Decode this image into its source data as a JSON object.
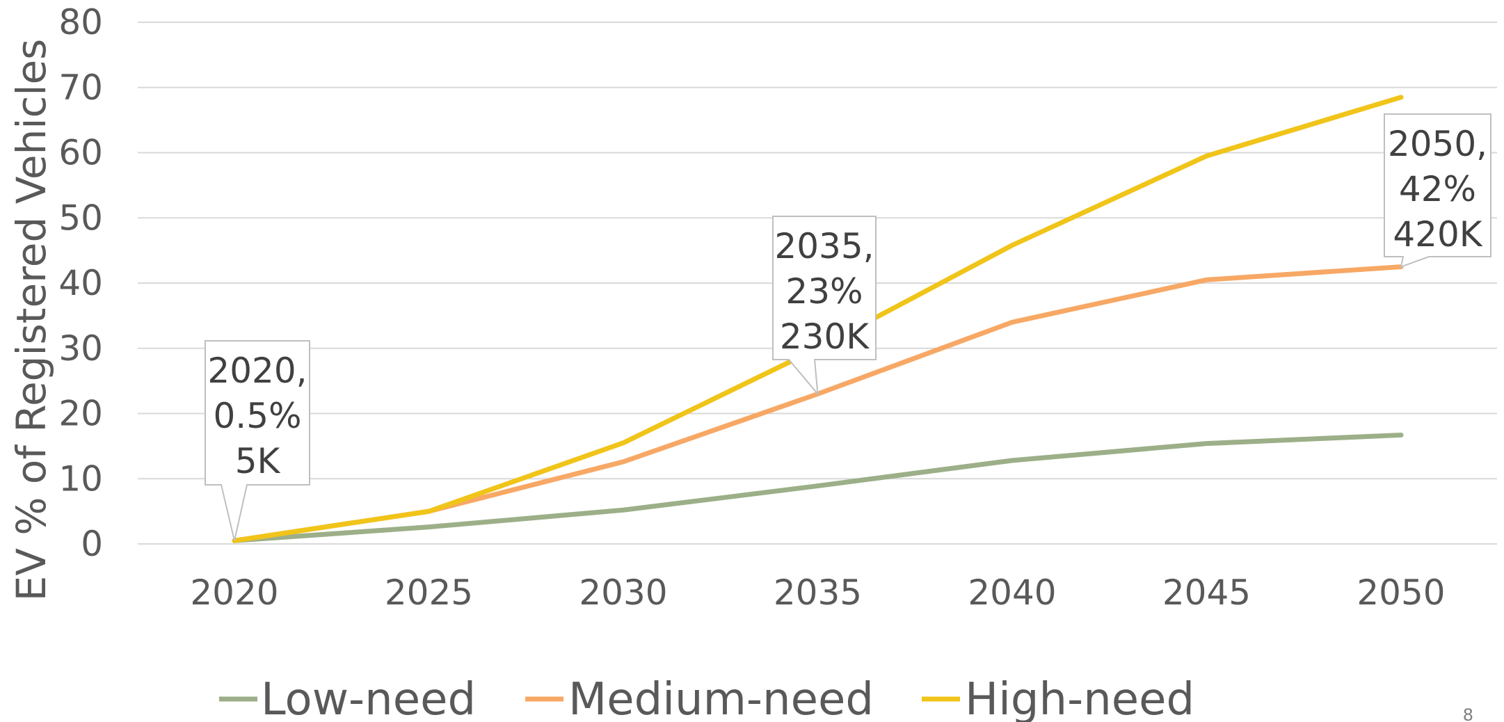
{
  "chart_data": {
    "type": "line",
    "title": "",
    "xlabel": "",
    "ylabel": "EV % of Registered Vehicles",
    "x": [
      2020,
      2025,
      2030,
      2035,
      2040,
      2045,
      2050
    ],
    "xticks": [
      "2020",
      "2025",
      "2030",
      "2035",
      "2040",
      "2045",
      "2050"
    ],
    "yticks": [
      "0",
      "10",
      "20",
      "30",
      "40",
      "50",
      "60",
      "70",
      "80"
    ],
    "ylim": [
      0,
      80
    ],
    "grid": "horizontal",
    "legend_position": "bottom",
    "series": [
      {
        "name": "Low-need",
        "color": "#9caf88",
        "values": [
          0.5,
          2.6,
          5.2,
          8.9,
          12.8,
          15.4,
          16.7
        ]
      },
      {
        "name": "Medium-need",
        "color": "#f7a865",
        "values": [
          0.5,
          5.0,
          12.6,
          23.0,
          34.0,
          40.5,
          42.5
        ]
      },
      {
        "name": "High-need",
        "color": "#f0c419",
        "values": [
          0.5,
          5.0,
          15.5,
          30.0,
          45.8,
          59.5,
          68.5
        ]
      }
    ],
    "annotations": [
      {
        "x": 2020,
        "y": 0.5,
        "lines": [
          "2020,",
          "0.5%",
          "5K"
        ]
      },
      {
        "x": 2035,
        "y": 23,
        "lines": [
          "2035,",
          "23%",
          "230K"
        ]
      },
      {
        "x": 2050,
        "y": 42.5,
        "lines": [
          "2050,",
          "42%",
          "420K"
        ]
      }
    ]
  },
  "page_number": "8"
}
